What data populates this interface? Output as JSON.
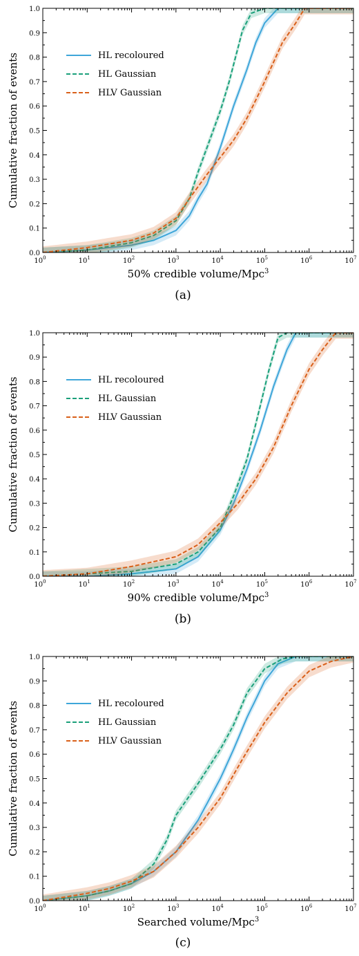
{
  "colors": {
    "hl_recoloured": "#3ea6d9",
    "hl_gaussian": "#1aa07a",
    "hlv_gaussian": "#d9601a"
  },
  "chart_data": [
    {
      "type": "line",
      "panel": "(a)",
      "xlabel": "50% credible volume/Mpc",
      "xlabel_sup": "3",
      "ylabel": "Cumulative fraction of events",
      "x_scale": "log",
      "xlim_exp": [
        0,
        7
      ],
      "ylim": [
        0,
        1
      ],
      "x_tick_base": "10",
      "x_tick_exponents": [
        "0",
        "1",
        "2",
        "3",
        "4",
        "5",
        "6",
        "7"
      ],
      "y_ticks": [
        "0.0",
        "0.1",
        "0.2",
        "0.3",
        "0.4",
        "0.5",
        "0.6",
        "0.7",
        "0.8",
        "0.9",
        "1.0"
      ],
      "legend": {
        "position": "upper-left",
        "entries": [
          "HL recoloured",
          "HL Gaussian",
          "HLV Gaussian"
        ]
      },
      "series": [
        {
          "name": "HL recoloured",
          "style": "solid",
          "band": 0.02,
          "x": [
            0,
            1,
            2,
            2.5,
            3,
            3.3,
            3.5,
            3.7,
            4,
            4.3,
            4.6,
            4.8,
            5,
            5.3
          ],
          "y": [
            0.0,
            0.01,
            0.03,
            0.05,
            0.09,
            0.15,
            0.22,
            0.28,
            0.43,
            0.6,
            0.75,
            0.86,
            0.94,
            1.0
          ]
        },
        {
          "name": "HL Gaussian",
          "style": "dashed",
          "band": 0.02,
          "x": [
            0,
            1,
            2,
            2.5,
            3,
            3.3,
            3.5,
            3.7,
            4,
            4.2,
            4.5,
            4.7,
            5,
            5.3
          ],
          "y": [
            0.0,
            0.01,
            0.04,
            0.07,
            0.13,
            0.22,
            0.33,
            0.43,
            0.58,
            0.7,
            0.91,
            0.98,
            1.0,
            1.0
          ]
        },
        {
          "name": "HLV Gaussian",
          "style": "dashed",
          "band": 0.025,
          "x": [
            0,
            1,
            2,
            2.5,
            3,
            3.3,
            3.5,
            3.7,
            4,
            4.3,
            4.6,
            5,
            5.4,
            5.7,
            5.9
          ],
          "y": [
            0.0,
            0.02,
            0.05,
            0.08,
            0.14,
            0.22,
            0.27,
            0.32,
            0.39,
            0.46,
            0.55,
            0.7,
            0.86,
            0.94,
            1.0
          ]
        }
      ]
    },
    {
      "type": "line",
      "panel": "(b)",
      "xlabel": "90% credible volume/Mpc",
      "xlabel_sup": "3",
      "ylabel": "Cumulative fraction of events",
      "x_scale": "log",
      "xlim_exp": [
        0,
        7
      ],
      "ylim": [
        0,
        1
      ],
      "x_tick_base": "10",
      "x_tick_exponents": [
        "0",
        "1",
        "2",
        "3",
        "4",
        "5",
        "6",
        "7"
      ],
      "y_ticks": [
        "0.0",
        "0.1",
        "0.2",
        "0.3",
        "0.4",
        "0.5",
        "0.6",
        "0.7",
        "0.8",
        "0.9",
        "1.0"
      ],
      "legend": {
        "position": "upper-left",
        "entries": [
          "HL recoloured",
          "HL Gaussian",
          "HLV Gaussian"
        ]
      },
      "series": [
        {
          "name": "HL recoloured",
          "style": "solid",
          "band": 0.02,
          "x": [
            0,
            1,
            2,
            3,
            3.5,
            4,
            4.3,
            4.6,
            4.9,
            5.2,
            5.5,
            5.7
          ],
          "y": [
            0.0,
            0.0,
            0.01,
            0.03,
            0.08,
            0.19,
            0.3,
            0.44,
            0.6,
            0.78,
            0.93,
            1.0
          ]
        },
        {
          "name": "HL Gaussian",
          "style": "dashed",
          "band": 0.02,
          "x": [
            0,
            1,
            2,
            3,
            3.5,
            4,
            4.3,
            4.6,
            4.9,
            5.1,
            5.3,
            5.5
          ],
          "y": [
            0.0,
            0.01,
            0.02,
            0.05,
            0.1,
            0.2,
            0.33,
            0.48,
            0.7,
            0.85,
            0.98,
            1.0
          ]
        },
        {
          "name": "HLV Gaussian",
          "style": "dashed",
          "band": 0.025,
          "x": [
            0,
            1,
            2,
            3,
            3.5,
            4,
            4.4,
            4.8,
            5.2,
            5.6,
            6,
            6.3,
            6.6
          ],
          "y": [
            0.0,
            0.01,
            0.04,
            0.08,
            0.13,
            0.22,
            0.3,
            0.4,
            0.53,
            0.7,
            0.85,
            0.93,
            1.0
          ]
        }
      ]
    },
    {
      "type": "line",
      "panel": "(c)",
      "xlabel": "Searched volume/Mpc",
      "xlabel_sup": "3",
      "ylabel": "Cumulative fraction of events",
      "x_scale": "log",
      "xlim_exp": [
        0,
        7
      ],
      "ylim": [
        0,
        1
      ],
      "x_tick_base": "10",
      "x_tick_exponents": [
        "0",
        "1",
        "2",
        "3",
        "4",
        "5",
        "6",
        "7"
      ],
      "y_ticks": [
        "0.0",
        "0.1",
        "0.2",
        "0.3",
        "0.4",
        "0.5",
        "0.6",
        "0.7",
        "0.8",
        "0.9",
        "1.0"
      ],
      "legend": {
        "position": "upper-left",
        "entries": [
          "HL recoloured",
          "HL Gaussian",
          "HLV Gaussian"
        ]
      },
      "series": [
        {
          "name": "HL recoloured",
          "style": "solid",
          "band": 0.02,
          "x": [
            0,
            1,
            1.5,
            2,
            2.5,
            3,
            3.5,
            4,
            4.3,
            4.6,
            5,
            5.3,
            5.7
          ],
          "y": [
            0.0,
            0.02,
            0.04,
            0.07,
            0.12,
            0.2,
            0.33,
            0.5,
            0.62,
            0.75,
            0.9,
            0.97,
            1.0
          ]
        },
        {
          "name": "HL Gaussian",
          "style": "dashed",
          "band": 0.02,
          "x": [
            0,
            1,
            1.5,
            2,
            2.5,
            2.8,
            3,
            3.5,
            4,
            4.3,
            4.6,
            5,
            5.4,
            5.7
          ],
          "y": [
            0.0,
            0.02,
            0.04,
            0.07,
            0.15,
            0.25,
            0.35,
            0.48,
            0.62,
            0.72,
            0.85,
            0.95,
            0.99,
            1.0
          ]
        },
        {
          "name": "HLV Gaussian",
          "style": "dashed",
          "band": 0.025,
          "x": [
            0,
            1,
            1.5,
            2,
            2.5,
            3,
            3.5,
            4,
            4.5,
            5,
            5.5,
            6,
            6.5,
            7
          ],
          "y": [
            0.0,
            0.03,
            0.05,
            0.08,
            0.12,
            0.2,
            0.3,
            0.42,
            0.58,
            0.73,
            0.85,
            0.94,
            0.98,
            1.0
          ]
        }
      ]
    }
  ]
}
